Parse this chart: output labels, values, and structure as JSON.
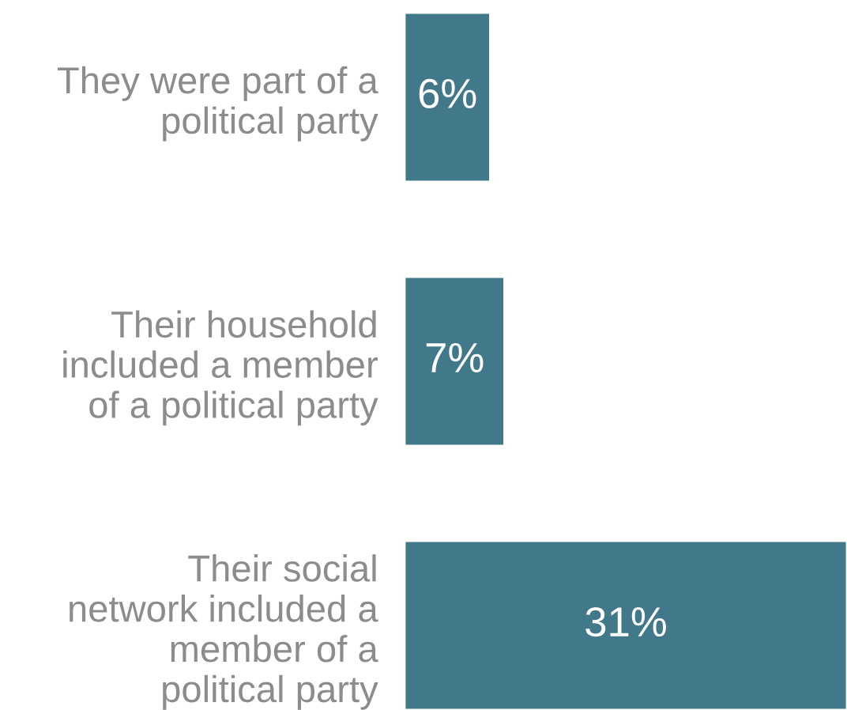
{
  "chart_data": {
    "type": "bar",
    "orientation": "horizontal",
    "categories": [
      "They were part of a\npolitical party",
      "Their household\nincluded a member\nof a political party",
      "Their social\nnetwork included a\nmember of a\npolitical party"
    ],
    "values": [
      6,
      7,
      31
    ],
    "value_labels": [
      "6%",
      "7%",
      "31%"
    ],
    "color": "#41788a"
  }
}
